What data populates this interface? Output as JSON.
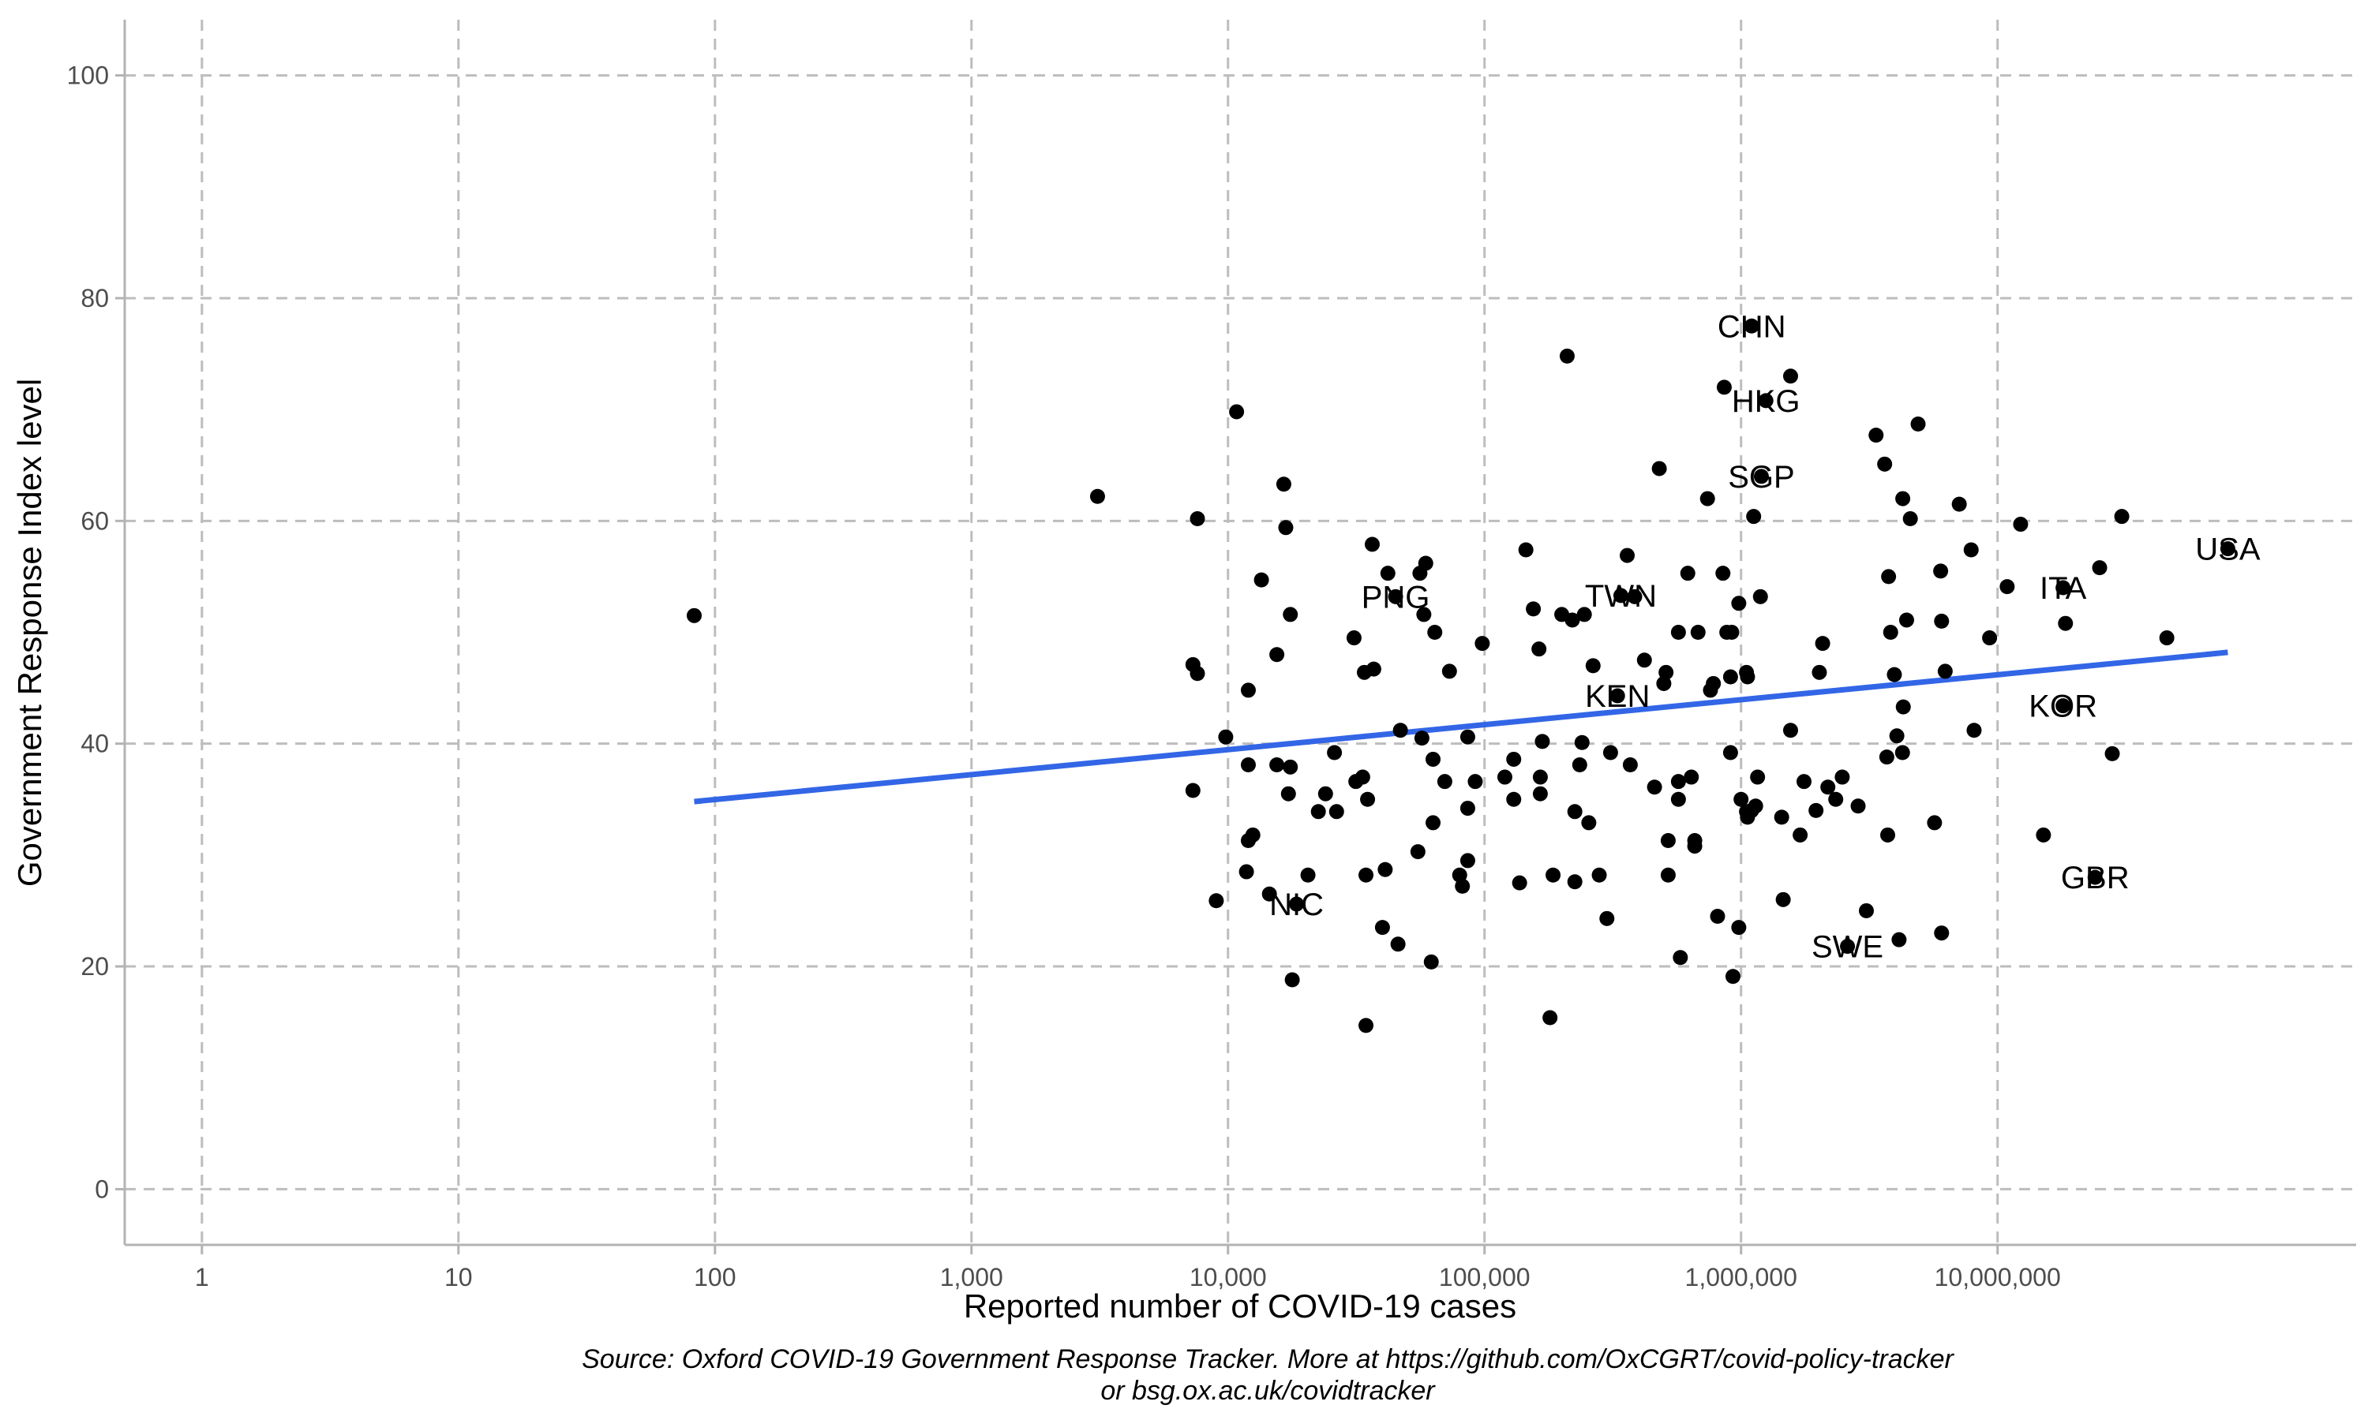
{
  "chart_data": {
    "type": "scatter",
    "title": "",
    "xlabel": "Reported number of COVID-19 cases",
    "ylabel": "Government Response Index level",
    "x_scale": "log10",
    "xlim": [
      0.5,
      250000000
    ],
    "ylim": [
      -5,
      105
    ],
    "x_ticks": [
      1,
      10,
      100,
      1000,
      10000,
      100000,
      1000000,
      10000000
    ],
    "x_tick_labels": [
      "1",
      "10",
      "100",
      "1,000",
      "10,000",
      "100,000",
      "1,000,000",
      "10,000,000"
    ],
    "y_ticks": [
      0,
      20,
      40,
      60,
      80,
      100
    ],
    "y_tick_labels": [
      "0",
      "20",
      "40",
      "60",
      "80",
      "100"
    ],
    "grid": true,
    "caption": [
      "Source: Oxford COVID-19 Government Response Tracker. More at https://github.com/OxCGRT/covid-policy-tracker",
      "or bsg.ox.ac.uk/covidtracker"
    ],
    "trend_line": {
      "color": "#3366e6",
      "points": [
        [
          83,
          34.8
        ],
        [
          79000000,
          48.2
        ]
      ]
    },
    "labeled_points": [
      {
        "label": "CHN",
        "x": 1100000,
        "y": 77.5
      },
      {
        "label": "HKG",
        "x": 1250000,
        "y": 70.8
      },
      {
        "label": "SGP",
        "x": 1200000,
        "y": 64.0
      },
      {
        "label": "USA",
        "x": 79000000,
        "y": 57.5
      },
      {
        "label": "ITA",
        "x": 18000000,
        "y": 54.0
      },
      {
        "label": "PNG",
        "x": 45000,
        "y": 53.2
      },
      {
        "label": "TWN",
        "x": 340000,
        "y": 53.3
      },
      {
        "label": "KEN",
        "x": 330000,
        "y": 44.3
      },
      {
        "label": "KOR",
        "x": 18000000,
        "y": 43.4
      },
      {
        "label": "GBR",
        "x": 24000000,
        "y": 28.0
      },
      {
        "label": "NIC",
        "x": 18500,
        "y": 25.6
      },
      {
        "label": "SWE",
        "x": 2600000,
        "y": 21.8
      }
    ],
    "points": [
      [
        83,
        51.5
      ],
      [
        3100,
        62.2
      ],
      [
        7600,
        60.2
      ],
      [
        7300,
        47.1
      ],
      [
        7600,
        46.3
      ],
      [
        7300,
        35.8
      ],
      [
        9000,
        25.9
      ],
      [
        9800,
        40.6
      ],
      [
        10800,
        69.8
      ],
      [
        12000,
        44.8
      ],
      [
        12000,
        38.1
      ],
      [
        12000,
        31.3
      ],
      [
        12500,
        31.8
      ],
      [
        11800,
        28.5
      ],
      [
        13500,
        54.7
      ],
      [
        14500,
        26.5
      ],
      [
        15500,
        48.0
      ],
      [
        15500,
        38.1
      ],
      [
        16500,
        63.3
      ],
      [
        16800,
        59.4
      ],
      [
        17500,
        51.6
      ],
      [
        17500,
        37.9
      ],
      [
        17200,
        35.5
      ],
      [
        17800,
        18.8
      ],
      [
        20500,
        28.2
      ],
      [
        22500,
        33.9
      ],
      [
        24000,
        35.5
      ],
      [
        26500,
        33.9
      ],
      [
        26000,
        39.2
      ],
      [
        31000,
        49.5
      ],
      [
        31500,
        36.6
      ],
      [
        33500,
        37.0
      ],
      [
        34000,
        46.4
      ],
      [
        35000,
        35.0
      ],
      [
        34500,
        28.2
      ],
      [
        34500,
        14.7
      ],
      [
        36500,
        57.9
      ],
      [
        37000,
        46.7
      ],
      [
        42000,
        55.3
      ],
      [
        41000,
        28.7
      ],
      [
        40000,
        23.5
      ],
      [
        47000,
        41.2
      ],
      [
        46000,
        22.0
      ],
      [
        56000,
        55.3
      ],
      [
        58000,
        51.6
      ],
      [
        59000,
        56.2
      ],
      [
        57000,
        40.5
      ],
      [
        55000,
        30.3
      ],
      [
        62000,
        20.4
      ],
      [
        63000,
        38.6
      ],
      [
        64000,
        50.0
      ],
      [
        63000,
        32.9
      ],
      [
        70000,
        36.6
      ],
      [
        73000,
        46.5
      ],
      [
        80000,
        28.2
      ],
      [
        82000,
        27.2
      ],
      [
        86000,
        40.6
      ],
      [
        86000,
        29.5
      ],
      [
        86000,
        34.2
      ],
      [
        92000,
        36.6
      ],
      [
        98000,
        49.0
      ],
      [
        120000,
        37.0
      ],
      [
        130000,
        35.0
      ],
      [
        130000,
        38.6
      ],
      [
        137000,
        27.5
      ],
      [
        145000,
        57.4
      ],
      [
        155000,
        52.1
      ],
      [
        163000,
        48.5
      ],
      [
        165000,
        35.5
      ],
      [
        165000,
        37.0
      ],
      [
        168000,
        40.2
      ],
      [
        180000,
        15.4
      ],
      [
        185000,
        28.2
      ],
      [
        200000,
        51.6
      ],
      [
        210000,
        74.8
      ],
      [
        220000,
        51.1
      ],
      [
        225000,
        33.9
      ],
      [
        225000,
        27.6
      ],
      [
        235000,
        38.1
      ],
      [
        240000,
        40.1
      ],
      [
        245000,
        51.6
      ],
      [
        255000,
        32.9
      ],
      [
        265000,
        47.0
      ],
      [
        280000,
        28.2
      ],
      [
        300000,
        24.3
      ],
      [
        310000,
        39.2
      ],
      [
        360000,
        56.9
      ],
      [
        370000,
        38.1
      ],
      [
        385000,
        53.2
      ],
      [
        420000,
        47.5
      ],
      [
        460000,
        36.1
      ],
      [
        480000,
        64.7
      ],
      [
        500000,
        45.4
      ],
      [
        510000,
        46.4
      ],
      [
        520000,
        28.2
      ],
      [
        520000,
        31.3
      ],
      [
        570000,
        50.0
      ],
      [
        570000,
        36.6
      ],
      [
        570000,
        35.0
      ],
      [
        580000,
        20.8
      ],
      [
        620000,
        55.3
      ],
      [
        640000,
        37.0
      ],
      [
        660000,
        31.3
      ],
      [
        660000,
        30.8
      ],
      [
        680000,
        50.0
      ],
      [
        740000,
        62.0
      ],
      [
        760000,
        44.8
      ],
      [
        780000,
        45.4
      ],
      [
        810000,
        24.5
      ],
      [
        850000,
        55.3
      ],
      [
        860000,
        72.0
      ],
      [
        880000,
        50.0
      ],
      [
        920000,
        50.0
      ],
      [
        910000,
        46.0
      ],
      [
        910000,
        39.2
      ],
      [
        930000,
        19.1
      ],
      [
        980000,
        52.6
      ],
      [
        980000,
        23.5
      ],
      [
        1000000,
        35.0
      ],
      [
        1050000,
        46.4
      ],
      [
        1060000,
        46.0
      ],
      [
        1050000,
        33.9
      ],
      [
        1060000,
        33.4
      ],
      [
        1100000,
        34.0
      ],
      [
        1120000,
        60.4
      ],
      [
        1140000,
        34.4
      ],
      [
        1160000,
        37.0
      ],
      [
        1190000,
        53.2
      ],
      [
        1440000,
        33.4
      ],
      [
        1460000,
        26.0
      ],
      [
        1560000,
        41.2
      ],
      [
        1560000,
        73.0
      ],
      [
        1700000,
        31.8
      ],
      [
        1760000,
        36.6
      ],
      [
        1960000,
        34.0
      ],
      [
        2020000,
        46.4
      ],
      [
        2080000,
        49.0
      ],
      [
        2180000,
        36.1
      ],
      [
        2340000,
        35.0
      ],
      [
        2480000,
        37.0
      ],
      [
        2860000,
        34.4
      ],
      [
        3080000,
        25.0
      ],
      [
        3360000,
        67.7
      ],
      [
        3630000,
        65.1
      ],
      [
        3700000,
        38.8
      ],
      [
        3730000,
        31.8
      ],
      [
        3760000,
        55.0
      ],
      [
        3830000,
        50.0
      ],
      [
        3960000,
        46.2
      ],
      [
        4050000,
        40.7
      ],
      [
        4130000,
        22.4
      ],
      [
        4260000,
        39.2
      ],
      [
        4290000,
        43.3
      ],
      [
        4270000,
        62.0
      ],
      [
        4420000,
        51.1
      ],
      [
        4570000,
        60.2
      ],
      [
        4900000,
        68.7
      ],
      [
        5680000,
        32.9
      ],
      [
        6000000,
        55.5
      ],
      [
        6050000,
        51.0
      ],
      [
        6050000,
        23.0
      ],
      [
        6250000,
        46.5
      ],
      [
        7090000,
        61.5
      ],
      [
        7890000,
        57.4
      ],
      [
        8100000,
        41.2
      ],
      [
        9310000,
        49.5
      ],
      [
        10900000,
        54.1
      ],
      [
        12300000,
        59.7
      ],
      [
        15100000,
        31.8
      ],
      [
        18400000,
        50.8
      ],
      [
        25000000,
        55.8
      ],
      [
        28000000,
        39.1
      ],
      [
        30500000,
        60.4
      ],
      [
        45700000,
        49.5
      ]
    ]
  }
}
